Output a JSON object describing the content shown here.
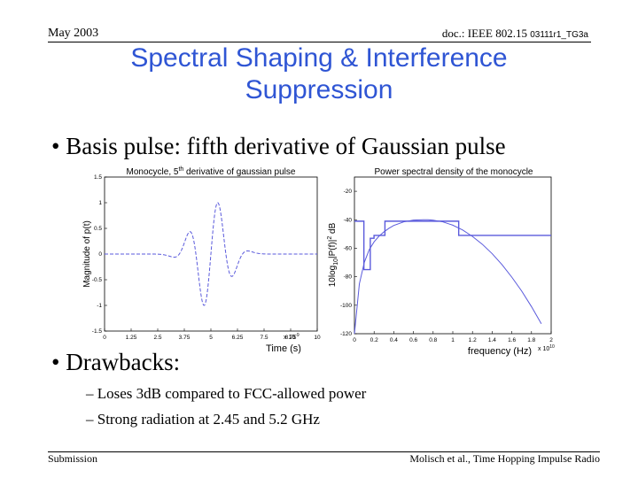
{
  "header": {
    "date": "May 2003",
    "doc_prefix": "doc.: IEEE 802.15",
    "doc_suffix": "03111r1_TG3a"
  },
  "slide": {
    "title_line1": "Spectral Shaping & Interference",
    "title_line2": "Suppression",
    "bullet1": "Basis pulse: fifth derivative of Gaussian pulse",
    "bullet2": "Drawbacks:",
    "subbullets": [
      "Loses 3dB compared to FCC-allowed power",
      "Strong radiation at 2.45 and 5.2 GHz"
    ]
  },
  "footer": {
    "left": "Submission",
    "right": "Molisch et al., Time Hopping Impulse Radio"
  },
  "colors": {
    "title": "#2f55d4",
    "curve": "#5a5adc",
    "mask": "#5a5adc"
  },
  "chart_data": [
    {
      "type": "line",
      "title_prefix": "Monocycle, 5",
      "title_sup": "th",
      "title_suffix": " derivative of gaussian pulse",
      "xlabel": "Time (s)",
      "ylabel": "Magnitude of p(t)",
      "x_exponent": "x 10",
      "x_exponent_power": "-9",
      "xlim": [
        0,
        1e-09
      ],
      "ylim": [
        -1.5,
        1.5
      ],
      "xticks": [
        0,
        1.25e-10,
        2.5e-10,
        3.75e-10,
        5e-10,
        6.25e-10,
        7.5e-10,
        8.75e-10,
        1e-09
      ],
      "xtick_labels": [
        "0",
        "1.25",
        "2.5",
        "3.75",
        "5",
        "6.25",
        "7.5",
        "8.75",
        "10"
      ],
      "yticks": [
        1.5,
        1,
        0.5,
        0,
        -0.5,
        -1,
        -1.5
      ],
      "ytick_labels": [
        "1.5",
        "1",
        "0.5",
        "0",
        "-0.5",
        "-1",
        "-1.5"
      ],
      "style": "dashed",
      "center": 5e-10,
      "sigma": 5.2e-11
    },
    {
      "type": "line",
      "title": "Power spectral density of the monocycle",
      "xlabel": "frequency (Hz)",
      "ylabel": "10log10|P(f)|2 dB",
      "ylabel_parts": {
        "a": "10log",
        "b": "10",
        "c": "|P(f)|",
        "d": "2",
        "e": " dB"
      },
      "x_exponent": "x 10",
      "x_exponent_power": "10",
      "xlim": [
        0,
        20000000000.0
      ],
      "ylim": [
        -120,
        -10
      ],
      "xticks": [
        0,
        2000000000.0,
        4000000000.0,
        6000000000.0,
        8000000000.0,
        10000000000.0,
        12000000000.0,
        14000000000.0,
        16000000000.0,
        18000000000.0,
        20000000000.0
      ],
      "xtick_labels": [
        "0",
        "0.2",
        "0.4",
        "0.6",
        "0.8",
        "1",
        "1.2",
        "1.4",
        "1.6",
        "1.8",
        "2"
      ],
      "yticks": [
        -20,
        -40,
        -60,
        -80,
        -100,
        -120
      ],
      "ytick_labels": [
        "-20",
        "-40",
        "-60",
        "-80",
        "-100",
        "-120"
      ],
      "mask": {
        "x": [
          0,
          960000000.0,
          960000000.0,
          1610000000.0,
          1610000000.0,
          1990000000.0,
          1990000000.0,
          3100000000.0,
          3100000000.0,
          10600000000.0,
          10600000000.0,
          20000000000.0
        ],
        "y": [
          -41,
          -41,
          -75,
          -75,
          -53,
          -53,
          -51,
          -51,
          -41,
          -41,
          -51,
          -51
        ]
      },
      "psd": {
        "x": [
          0,
          500000000.0,
          1000000000.0,
          1500000000.0,
          2000000000.0,
          2500000000.0,
          3000000000.0,
          3500000000.0,
          4000000000.0,
          5000000000.0,
          6000000000.0,
          7000000000.0,
          7500000000.0,
          8000000000.0,
          9000000000.0,
          10000000000.0,
          11000000000.0,
          12000000000.0,
          13000000000.0,
          14000000000.0,
          15000000000.0,
          16000000000.0,
          17000000000.0,
          18000000000.0,
          19000000000.0
        ],
        "y": [
          -120,
          -85,
          -70,
          -61,
          -55.5,
          -51.5,
          -48.5,
          -46,
          -44,
          -41.5,
          -40.2,
          -40,
          -40,
          -40.3,
          -41.5,
          -43.8,
          -47.2,
          -51.7,
          -57.2,
          -63.8,
          -71.5,
          -80.3,
          -90,
          -101,
          -113
        ]
      }
    }
  ]
}
